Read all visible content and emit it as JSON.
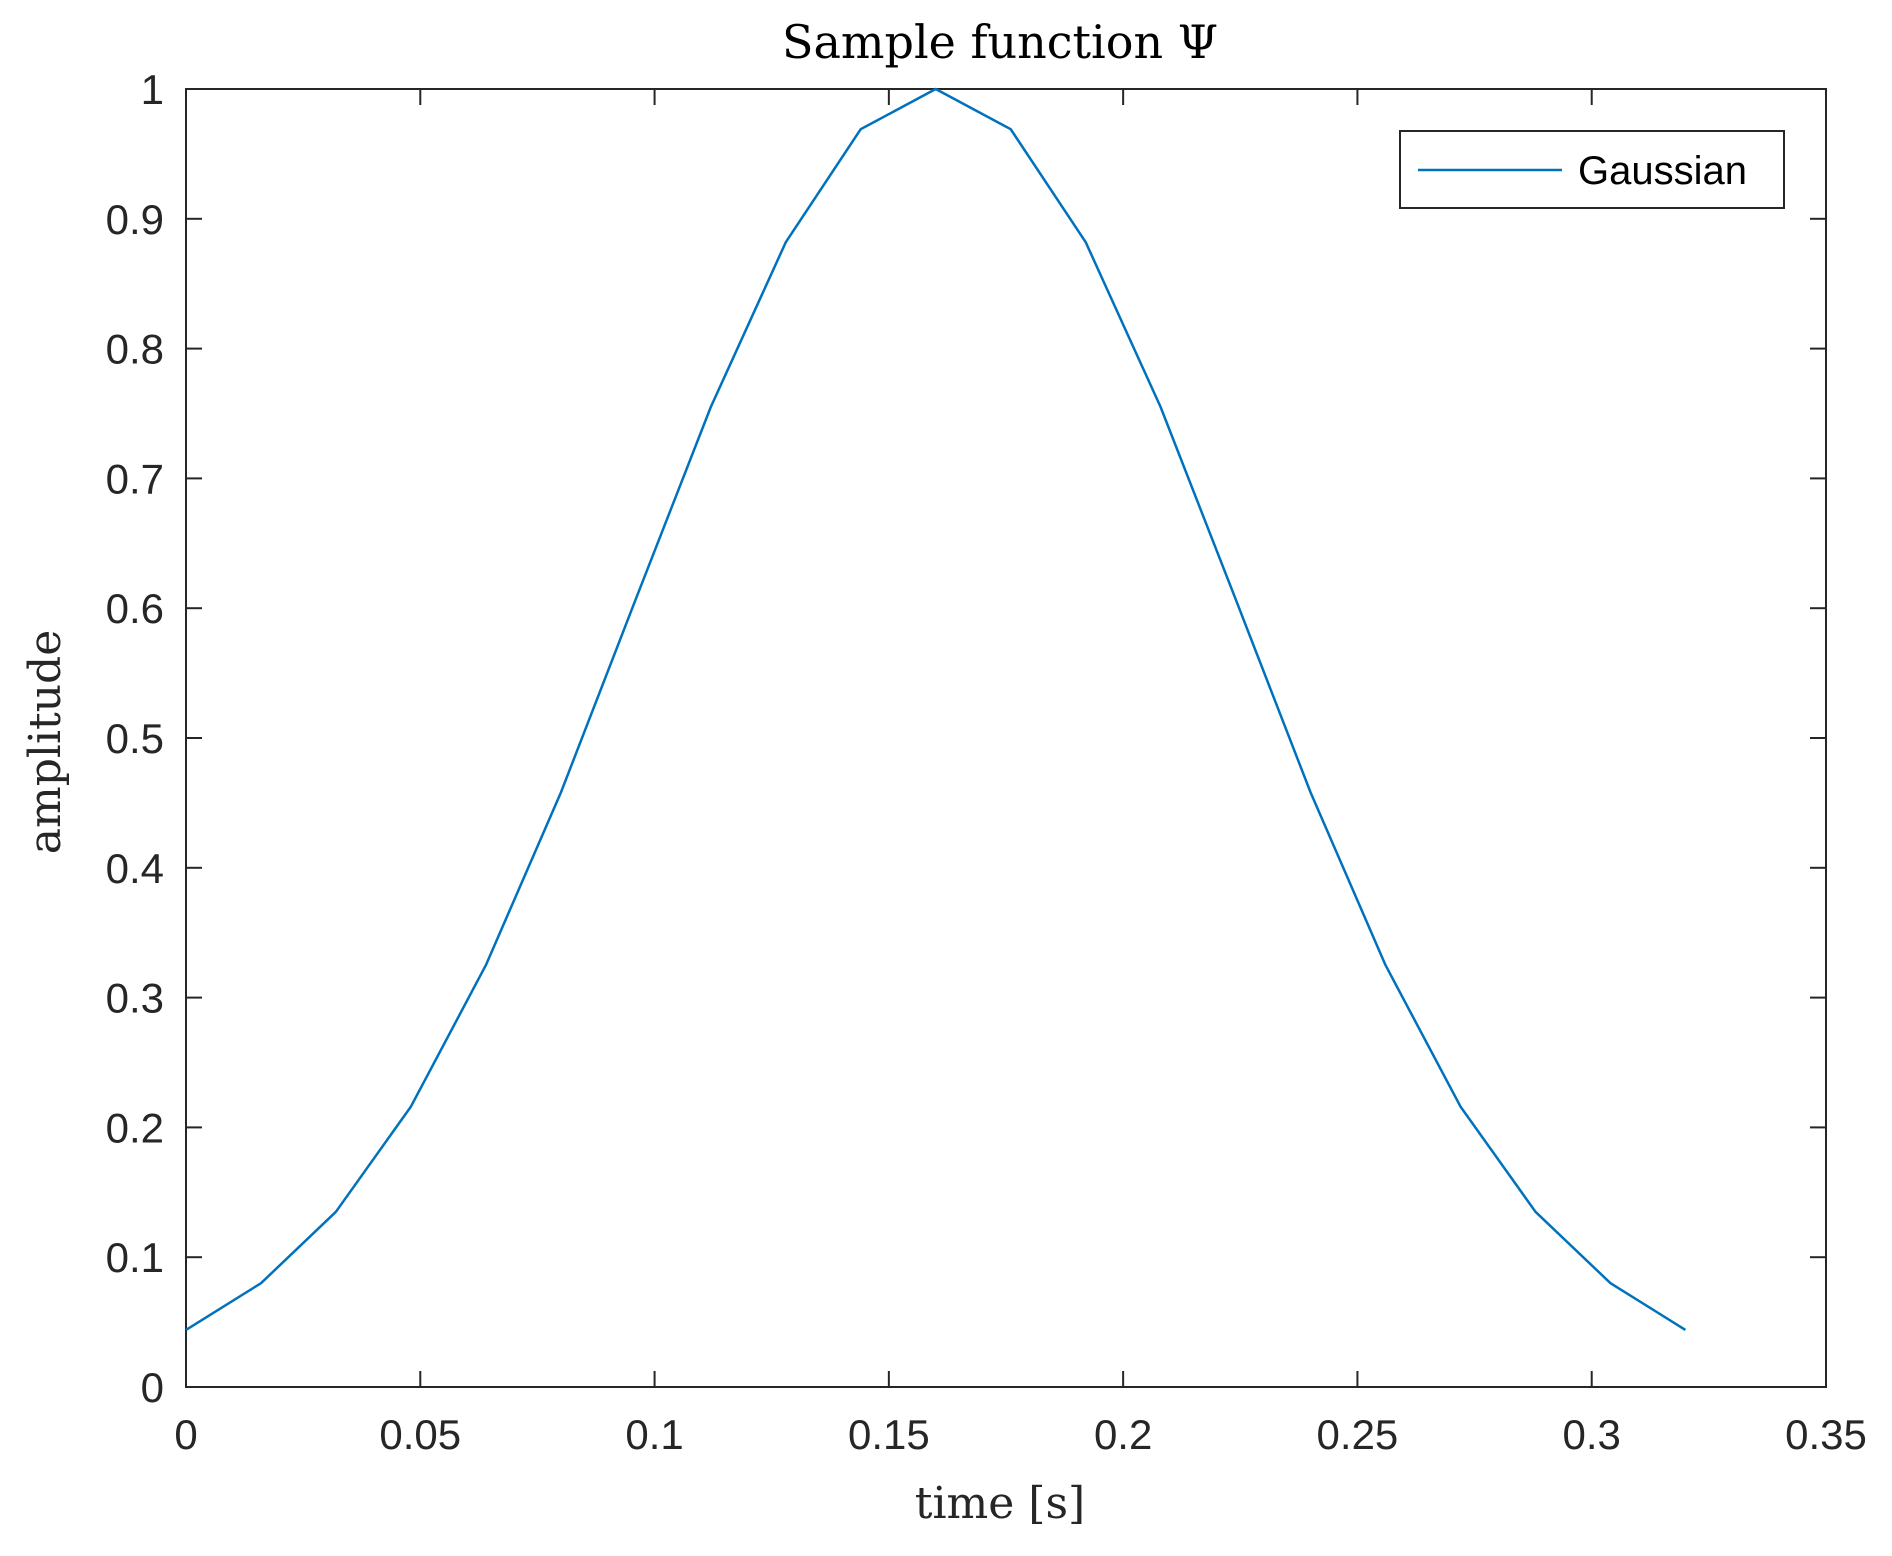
{
  "chart_data": {
    "type": "line",
    "title": "Sample function Ψ",
    "xlabel": "time [s]",
    "ylabel": "amplitude",
    "xlim": [
      0,
      0.35
    ],
    "ylim": [
      0,
      1
    ],
    "x_ticks": [
      0,
      0.05,
      0.1,
      0.15,
      0.2,
      0.25,
      0.3,
      0.35
    ],
    "x_tick_labels": [
      "0",
      "0.05",
      "0.1",
      "0.15",
      "0.2",
      "0.25",
      "0.3",
      "0.35"
    ],
    "y_ticks": [
      0,
      0.1,
      0.2,
      0.3,
      0.4,
      0.5,
      0.6,
      0.7,
      0.8,
      0.9,
      1
    ],
    "y_tick_labels": [
      "0",
      "0.1",
      "0.2",
      "0.3",
      "0.4",
      "0.5",
      "0.6",
      "0.7",
      "0.8",
      "0.9",
      "1"
    ],
    "grid": false,
    "legend_position": "top-right",
    "series": [
      {
        "name": "Gaussian",
        "color": "#0072BD",
        "x": [
          0,
          0.016,
          0.032,
          0.048,
          0.064,
          0.08,
          0.096,
          0.112,
          0.128,
          0.144,
          0.16,
          0.176,
          0.192,
          0.208,
          0.224,
          0.24,
          0.256,
          0.272,
          0.288,
          0.304,
          0.32
        ],
        "y": [
          0.044,
          0.08,
          0.135,
          0.216,
          0.325,
          0.458,
          0.607,
          0.755,
          0.882,
          0.969,
          1.0,
          0.969,
          0.882,
          0.755,
          0.607,
          0.458,
          0.325,
          0.216,
          0.135,
          0.08,
          0.044
        ]
      }
    ]
  }
}
